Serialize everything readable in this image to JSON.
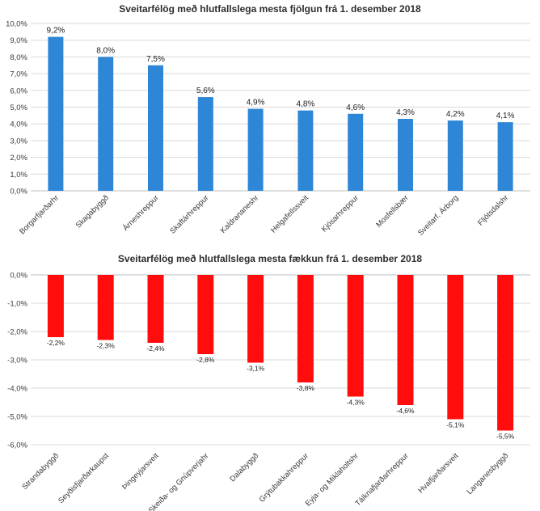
{
  "chart_data": [
    {
      "type": "bar",
      "title": "Sveitarfélög með hlutfallslega mesta fjölgun frá 1. desember 2018",
      "categories": [
        "Borgarfjarðarhr",
        "Skagabyggð",
        "Árneshreppur",
        "Skaftárhreppur",
        "Kaldrananeshr",
        "Helgafellssveit",
        "Kjósarhreppur",
        "Mosfellsbær",
        "Sveitarf. Árborg",
        "Fljótsdalshr"
      ],
      "values": [
        9.2,
        8.0,
        7.5,
        5.6,
        4.9,
        4.8,
        4.6,
        4.3,
        4.2,
        4.1
      ],
      "value_labels": [
        "9,2%",
        "8,0%",
        "7,5%",
        "5,6%",
        "4,9%",
        "4,8%",
        "4,6%",
        "4,3%",
        "4,2%",
        "4,1%"
      ],
      "y_ticks": [
        "0,0%",
        "1,0%",
        "2,0%",
        "3,0%",
        "4,0%",
        "5,0%",
        "6,0%",
        "7,0%",
        "8,0%",
        "9,0%",
        "10,0%"
      ],
      "ylim": [
        0,
        10
      ],
      "grid": true,
      "color": "#2e86d6"
    },
    {
      "type": "bar",
      "title": "Sveitarfélög með hlutfallslega mesta fækkun frá 1. desember 2018",
      "categories": [
        "Strandabyggð",
        "Seyðisfjarðarkaupst",
        "Þingeyjarsveit",
        "Skeiða- og Gnúpverjahr",
        "Dalabyggð",
        "Grýtubakkahreppur",
        "Eyja- og Miklaholtshr",
        "Tálknafjarðarhreppur",
        "Hvalfjarðarsveit",
        "Langanesbyggð"
      ],
      "values": [
        -2.2,
        -2.3,
        -2.4,
        -2.8,
        -3.1,
        -3.8,
        -4.3,
        -4.6,
        -5.1,
        -5.5
      ],
      "value_labels": [
        "-2,2%",
        "-2,3%",
        "-2,4%",
        "-2,8%",
        "-3,1%",
        "-3,8%",
        "-4,3%",
        "-4,6%",
        "-5,1%",
        "-5,5%"
      ],
      "y_ticks": [
        "0,0%",
        "-1,0%",
        "-2,0%",
        "-3,0%",
        "-4,0%",
        "-5,0%",
        "-6,0%"
      ],
      "ylim": [
        -6,
        0
      ],
      "grid": true,
      "color": "#ff0d0d"
    }
  ]
}
